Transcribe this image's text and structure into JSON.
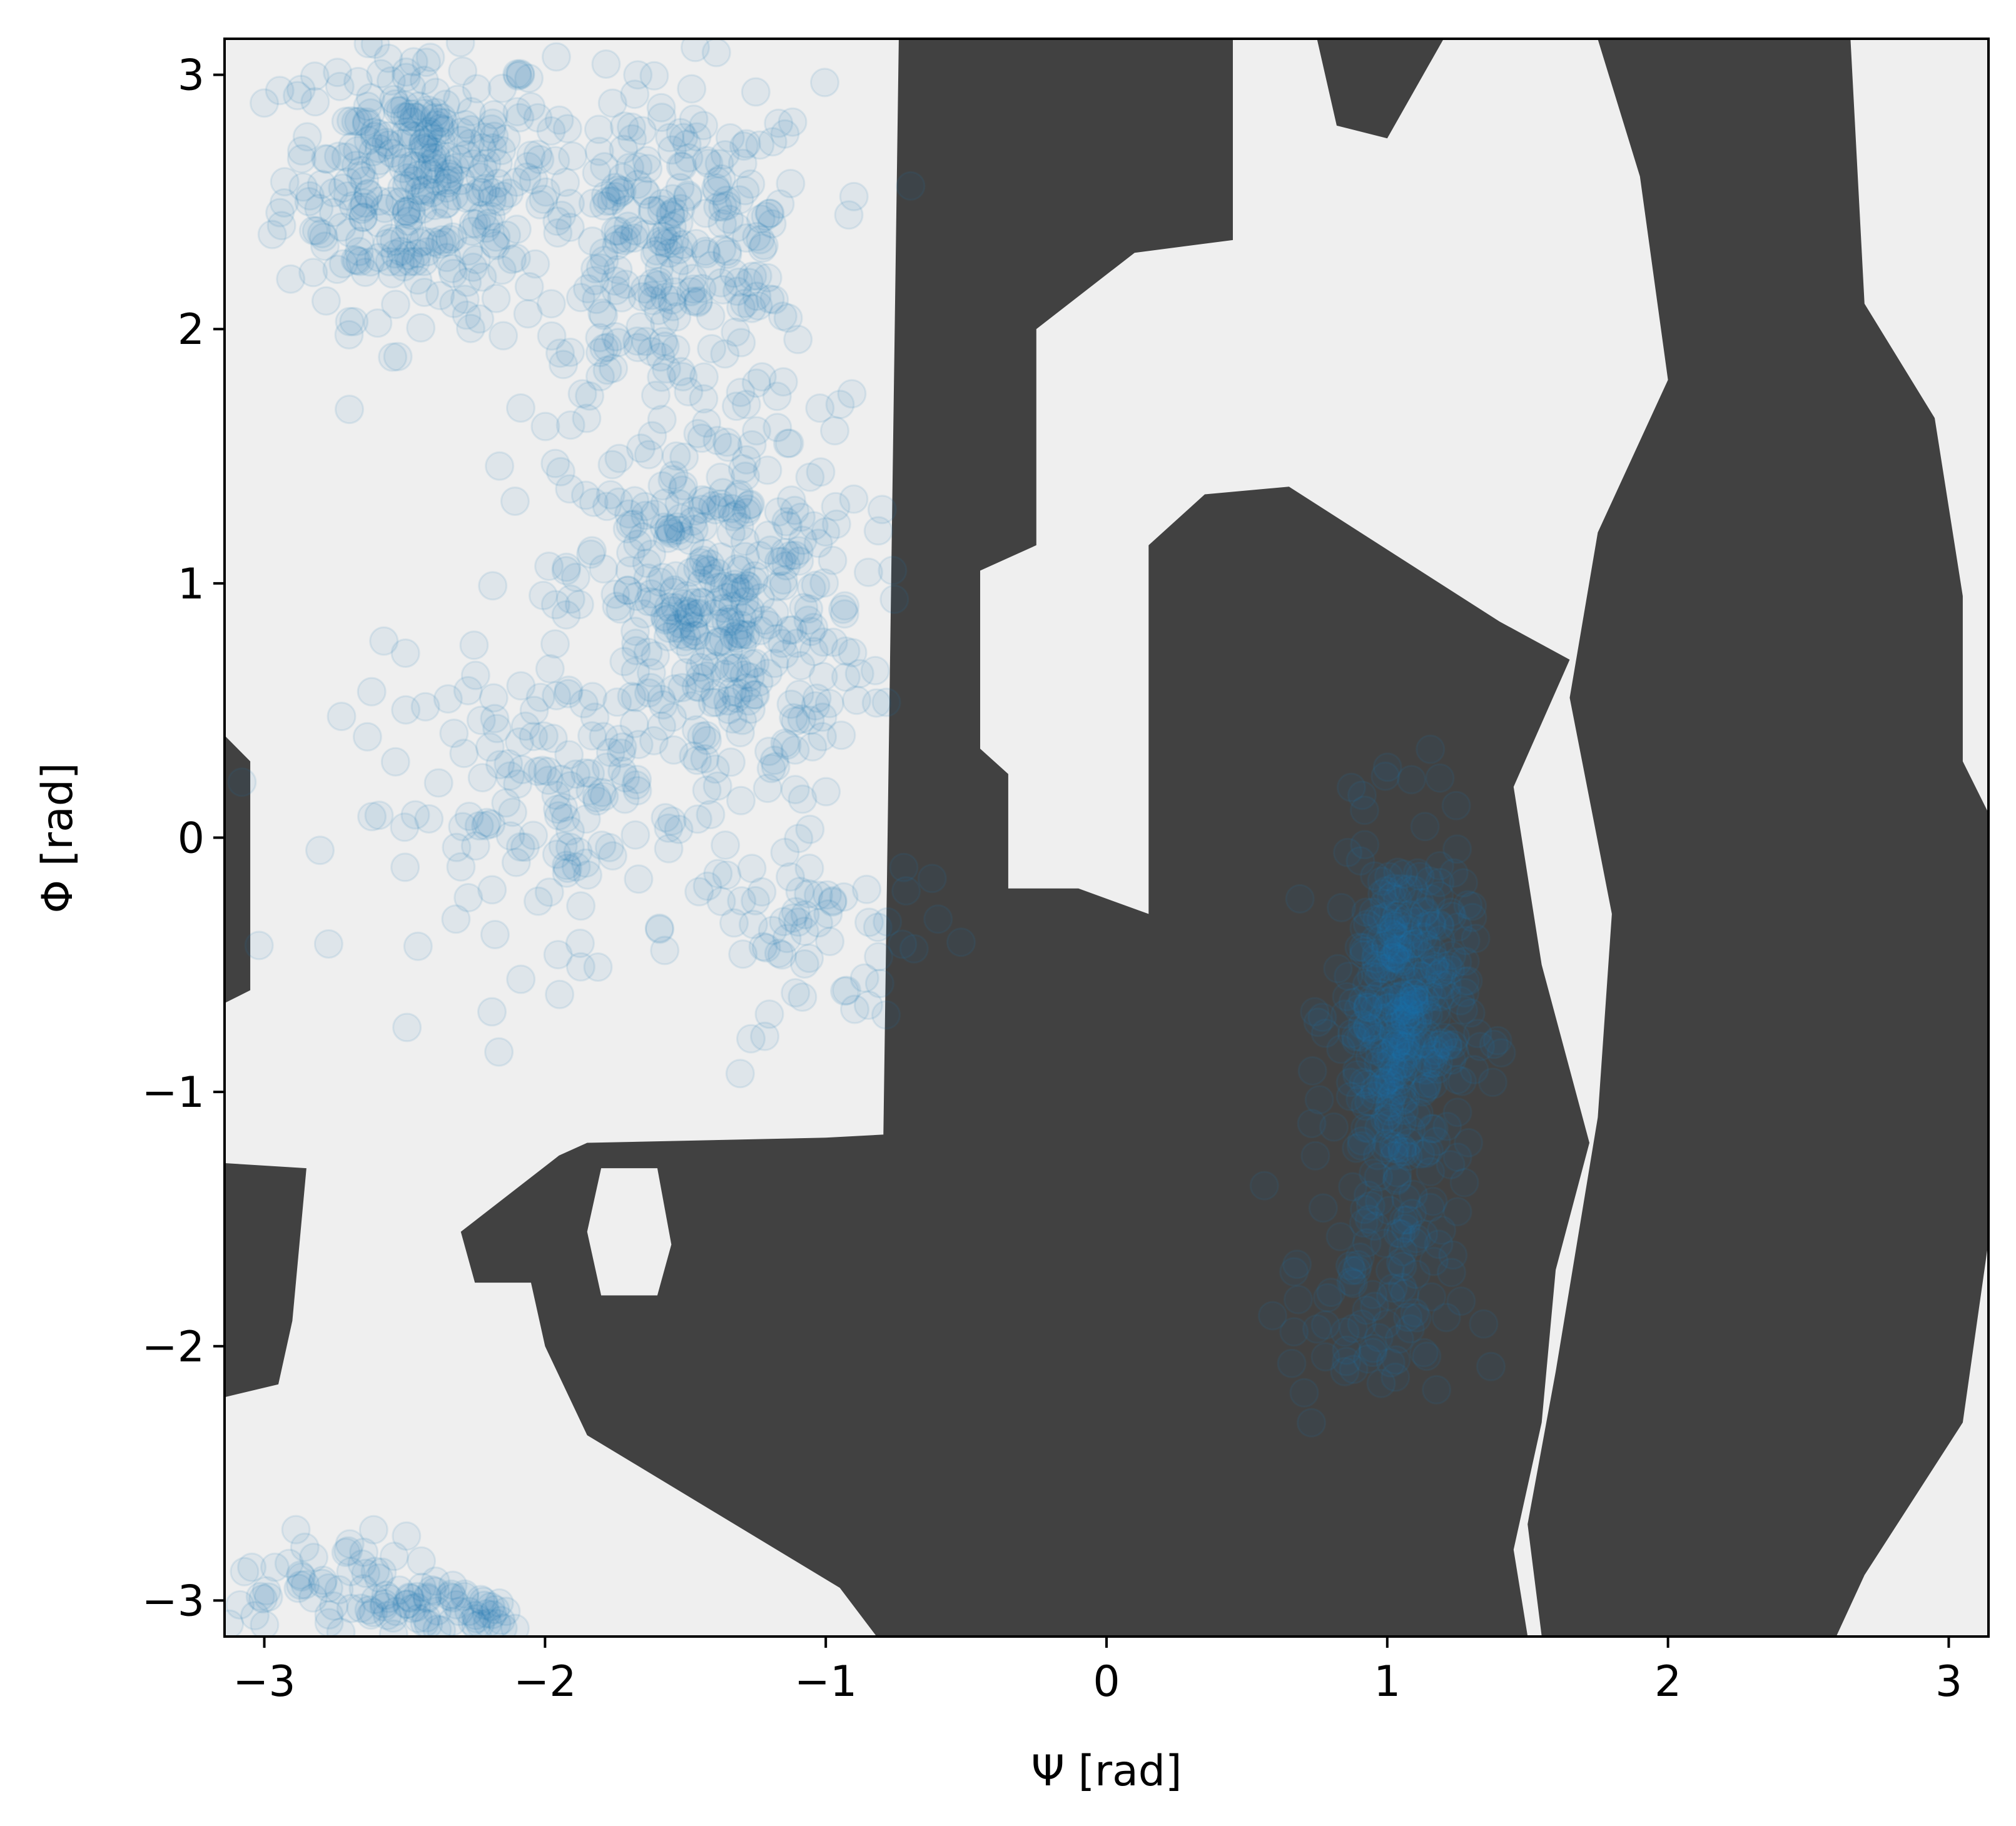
{
  "chart_data": {
    "type": "scatter",
    "xlabel": "Ψ [rad]",
    "ylabel": "Φ [rad]",
    "xlim": [
      -3.1416,
      3.1416
    ],
    "ylim": [
      -3.1416,
      3.1416
    ],
    "xticks": [
      -3,
      -2,
      -1,
      0,
      1,
      2,
      3
    ],
    "yticks": [
      -3,
      -2,
      -1,
      0,
      1,
      2,
      3
    ],
    "xtick_labels": [
      "−3",
      "−2",
      "−1",
      "0",
      "1",
      "2",
      "3"
    ],
    "ytick_labels": [
      "−3",
      "−2",
      "−1",
      "0",
      "1",
      "2",
      "3"
    ],
    "grid": false,
    "legend": "none",
    "background": {
      "description": "binary region map: forbidden regions dark, allowed regions light",
      "allowed_color": "#efefef",
      "forbidden_color": "#414141",
      "forbidden_regions": [
        [
          [
            -0.74,
            3.14
          ],
          [
            0.45,
            3.14
          ],
          [
            0.45,
            2.35
          ],
          [
            0.1,
            2.3
          ],
          [
            -0.25,
            2.0
          ],
          [
            -0.25,
            1.15
          ],
          [
            -0.45,
            1.05
          ],
          [
            -0.45,
            0.35
          ],
          [
            -0.35,
            0.25
          ],
          [
            -0.35,
            -0.2
          ],
          [
            -0.1,
            -0.2
          ],
          [
            0.15,
            -0.3
          ],
          [
            0.15,
            1.15
          ],
          [
            0.35,
            1.35
          ],
          [
            0.65,
            1.38
          ],
          [
            1.4,
            0.85
          ],
          [
            1.65,
            0.7
          ],
          [
            1.45,
            0.2
          ],
          [
            1.55,
            -0.5
          ],
          [
            1.72,
            -1.2
          ],
          [
            1.6,
            -1.7
          ],
          [
            1.55,
            -2.3
          ],
          [
            1.45,
            -2.8
          ],
          [
            1.5,
            -3.14
          ],
          [
            -0.82,
            -3.14
          ],
          [
            -0.95,
            -2.95
          ],
          [
            -1.85,
            -2.35
          ],
          [
            -2.0,
            -2.0
          ],
          [
            -2.05,
            -1.75
          ],
          [
            -2.25,
            -1.75
          ],
          [
            -2.3,
            -1.55
          ],
          [
            -1.95,
            -1.25
          ],
          [
            -1.85,
            -1.2
          ],
          [
            -1.0,
            -1.18
          ],
          [
            -0.5,
            -1.15
          ],
          [
            0.1,
            -1.0
          ],
          [
            0.1,
            -1.35
          ],
          [
            0.25,
            -1.75
          ],
          [
            0.3,
            -2.2
          ],
          [
            0.45,
            -2.45
          ],
          [
            0.65,
            -3.14
          ],
          [
            -0.82,
            -3.14
          ]
        ],
        [
          [
            0.75,
            3.14
          ],
          [
            0.82,
            2.8
          ],
          [
            1.0,
            2.75
          ],
          [
            1.2,
            3.14
          ]
        ],
        [
          [
            1.75,
            3.14
          ],
          [
            2.65,
            3.14
          ],
          [
            2.7,
            2.1
          ],
          [
            2.95,
            1.65
          ],
          [
            3.05,
            0.95
          ],
          [
            3.05,
            0.3
          ],
          [
            3.14,
            0.1
          ],
          [
            3.14,
            -1.6
          ],
          [
            3.05,
            -2.3
          ],
          [
            2.7,
            -2.9
          ],
          [
            2.6,
            -3.14
          ],
          [
            1.55,
            -3.14
          ],
          [
            1.5,
            -2.7
          ],
          [
            1.6,
            -2.1
          ],
          [
            1.75,
            -1.1
          ],
          [
            1.8,
            -0.3
          ],
          [
            1.65,
            0.55
          ],
          [
            1.75,
            1.2
          ],
          [
            2.0,
            1.8
          ],
          [
            1.9,
            2.6
          ]
        ],
        [
          [
            -3.14,
            0.4
          ],
          [
            -3.05,
            0.3
          ],
          [
            -3.05,
            -0.6
          ],
          [
            -3.14,
            -0.65
          ]
        ],
        [
          [
            -3.14,
            -1.28
          ],
          [
            -2.85,
            -1.3
          ],
          [
            -2.9,
            -1.9
          ],
          [
            -2.95,
            -2.15
          ],
          [
            -3.14,
            -2.2
          ]
        ]
      ],
      "allowed_islands": [
        [
          [
            -1.8,
            -1.3
          ],
          [
            -1.6,
            -1.3
          ],
          [
            -1.55,
            -1.6
          ],
          [
            -1.6,
            -1.8
          ],
          [
            -1.8,
            -1.8
          ],
          [
            -1.85,
            -1.55
          ]
        ]
      ]
    },
    "series": [
      {
        "color": "#1f77b4",
        "alpha": 0.08,
        "marker": "circle",
        "clusters": [
          {
            "center": [
              -2.45,
              2.6
            ],
            "spread": [
              0.4,
              0.45
            ],
            "count": 320
          },
          {
            "center": [
              -1.55,
              2.3
            ],
            "spread": [
              0.45,
              0.55
            ],
            "count": 260
          },
          {
            "center": [
              -1.4,
              0.9
            ],
            "spread": [
              0.45,
              0.65
            ],
            "count": 380
          },
          {
            "center": [
              -2.0,
              0.1
            ],
            "spread": [
              0.6,
              0.5
            ],
            "count": 140
          },
          {
            "center": [
              -1.0,
              -0.4
            ],
            "spread": [
              0.4,
              0.3
            ],
            "count": 60
          },
          {
            "center": [
              1.05,
              -0.7
            ],
            "spread": [
              0.2,
              0.6
            ],
            "count": 360
          },
          {
            "center": [
              0.95,
              -1.8
            ],
            "spread": [
              0.25,
              0.45
            ],
            "count": 90
          },
          {
            "center": [
              -2.7,
              -2.95
            ],
            "spread": [
              0.35,
              0.18
            ],
            "count": 80
          },
          {
            "center": [
              -2.3,
              -3.05
            ],
            "spread": [
              0.25,
              0.1
            ],
            "count": 40
          }
        ]
      }
    ]
  }
}
